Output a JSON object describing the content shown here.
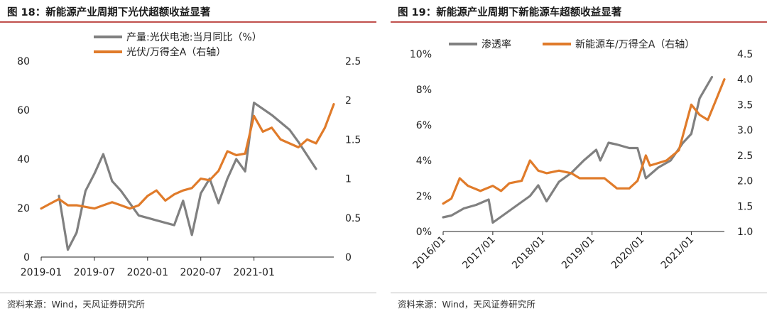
{
  "left": {
    "title": "图 18：新能源产业周期下光伏超额收益显著",
    "source": "资料来源：Wind，天风证券研究所",
    "chart_data": {
      "type": "line",
      "title": "图 18：新能源产业周期下光伏超额收益显著",
      "x_ticks": [
        "2019-01",
        "2019-07",
        "2020-01",
        "2020-07",
        "2021-01"
      ],
      "x_range": [
        "2019-01",
        "2021-10"
      ],
      "y_left": {
        "range": [
          0,
          80
        ],
        "ticks": [
          "0",
          "20",
          "40",
          "60",
          "80"
        ]
      },
      "y_right": {
        "range": [
          0,
          2.5
        ],
        "ticks": [
          "0",
          "0.5",
          "1",
          "1.5",
          "2",
          "2.5"
        ]
      },
      "grid": false,
      "legend_position": "top",
      "series": [
        {
          "name": "产量:光伏电池:当月同比（%）",
          "axis": "left",
          "color": "#808080",
          "points": [
            [
              "2019-03",
              25
            ],
            [
              "2019-04",
              3
            ],
            [
              "2019-05",
              10
            ],
            [
              "2019-06",
              27
            ],
            [
              "2019-07",
              34
            ],
            [
              "2019-08",
              42
            ],
            [
              "2019-09",
              31
            ],
            [
              "2019-10",
              27
            ],
            [
              "2019-11",
              22
            ],
            [
              "2019-12",
              17
            ],
            [
              "2020-01",
              16
            ],
            [
              "2020-02",
              15
            ],
            [
              "2020-03",
              14
            ],
            [
              "2020-04",
              13
            ],
            [
              "2020-05",
              23
            ],
            [
              "2020-06",
              9
            ],
            [
              "2020-07",
              26
            ],
            [
              "2020-08",
              32
            ],
            [
              "2020-09",
              22
            ],
            [
              "2020-10",
              32
            ],
            [
              "2020-11",
              40
            ],
            [
              "2020-12",
              35
            ],
            [
              "2021-01",
              63
            ],
            [
              "2021-03",
              58
            ],
            [
              "2021-05",
              52
            ],
            [
              "2021-06",
              47
            ],
            [
              "2021-08",
              36
            ]
          ]
        },
        {
          "name": "光伏/万得全A（右轴）",
          "axis": "right",
          "color": "#e07b2a",
          "points": [
            [
              "2019-01",
              0.62
            ],
            [
              "2019-02",
              0.68
            ],
            [
              "2019-03",
              0.74
            ],
            [
              "2019-04",
              0.66
            ],
            [
              "2019-05",
              0.66
            ],
            [
              "2019-06",
              0.64
            ],
            [
              "2019-07",
              0.62
            ],
            [
              "2019-08",
              0.66
            ],
            [
              "2019-09",
              0.7
            ],
            [
              "2019-10",
              0.66
            ],
            [
              "2019-11",
              0.62
            ],
            [
              "2019-12",
              0.66
            ],
            [
              "2020-01",
              0.78
            ],
            [
              "2020-02",
              0.85
            ],
            [
              "2020-03",
              0.72
            ],
            [
              "2020-04",
              0.8
            ],
            [
              "2020-05",
              0.85
            ],
            [
              "2020-06",
              0.88
            ],
            [
              "2020-07",
              1.0
            ],
            [
              "2020-08",
              0.98
            ],
            [
              "2020-09",
              1.1
            ],
            [
              "2020-10",
              1.35
            ],
            [
              "2020-11",
              1.3
            ],
            [
              "2020-12",
              1.32
            ],
            [
              "2021-01",
              1.8
            ],
            [
              "2021-02",
              1.6
            ],
            [
              "2021-03",
              1.65
            ],
            [
              "2021-04",
              1.5
            ],
            [
              "2021-05",
              1.45
            ],
            [
              "2021-06",
              1.4
            ],
            [
              "2021-07",
              1.5
            ],
            [
              "2021-08",
              1.45
            ],
            [
              "2021-09",
              1.65
            ],
            [
              "2021-10",
              1.95
            ]
          ]
        }
      ]
    }
  },
  "right": {
    "title": "图 19：新能源产业周期下新能源车超额收益显著",
    "source": "资料来源：Wind，天风证券研究所",
    "chart_data": {
      "type": "line",
      "title": "图 19：新能源产业周期下新能源车超额收益显著",
      "x_ticks": [
        "2016/01",
        "2017/01",
        "2018/01",
        "2019/01",
        "2020/01",
        "2021/01"
      ],
      "x_range": [
        "2016-01",
        "2021-09"
      ],
      "y_left": {
        "range": [
          0,
          10
        ],
        "ticks": [
          "0%",
          "2%",
          "4%",
          "6%",
          "8%",
          "10%"
        ]
      },
      "y_right": {
        "range": [
          1.0,
          4.5
        ],
        "ticks": [
          "1.0",
          "1.5",
          "2.0",
          "2.5",
          "3.0",
          "3.5",
          "4.0",
          "4.5"
        ]
      },
      "grid": false,
      "legend_position": "top",
      "series": [
        {
          "name": "渗透率",
          "axis": "left",
          "color": "#808080",
          "points": [
            [
              "2016-01",
              0.8
            ],
            [
              "2016-03",
              0.9
            ],
            [
              "2016-06",
              1.3
            ],
            [
              "2016-09",
              1.5
            ],
            [
              "2016-12",
              1.8
            ],
            [
              "2017-01",
              0.5
            ],
            [
              "2017-04",
              1.0
            ],
            [
              "2017-07",
              1.5
            ],
            [
              "2017-10",
              2.0
            ],
            [
              "2017-12",
              2.6
            ],
            [
              "2018-02",
              1.7
            ],
            [
              "2018-05",
              2.8
            ],
            [
              "2018-08",
              3.3
            ],
            [
              "2018-11",
              4.0
            ],
            [
              "2019-02",
              4.6
            ],
            [
              "2019-03",
              4.0
            ],
            [
              "2019-05",
              5.0
            ],
            [
              "2019-07",
              4.9
            ],
            [
              "2019-10",
              4.7
            ],
            [
              "2019-12",
              4.7
            ],
            [
              "2020-02",
              3.0
            ],
            [
              "2020-05",
              3.6
            ],
            [
              "2020-08",
              4.0
            ],
            [
              "2020-11",
              5.0
            ],
            [
              "2021-01",
              5.5
            ],
            [
              "2021-03",
              7.5
            ],
            [
              "2021-06",
              8.7
            ]
          ]
        },
        {
          "name": "新能源车/万得全A（右轴）",
          "axis": "right",
          "color": "#e07b2a",
          "points": [
            [
              "2016-01",
              1.55
            ],
            [
              "2016-03",
              1.65
            ],
            [
              "2016-05",
              2.05
            ],
            [
              "2016-07",
              1.9
            ],
            [
              "2016-10",
              1.8
            ],
            [
              "2017-01",
              1.9
            ],
            [
              "2017-03",
              1.8
            ],
            [
              "2017-05",
              1.95
            ],
            [
              "2017-08",
              2.0
            ],
            [
              "2017-10",
              2.4
            ],
            [
              "2017-12",
              2.2
            ],
            [
              "2018-02",
              2.15
            ],
            [
              "2018-05",
              2.2
            ],
            [
              "2018-08",
              2.15
            ],
            [
              "2018-10",
              2.05
            ],
            [
              "2019-01",
              2.05
            ],
            [
              "2019-04",
              2.05
            ],
            [
              "2019-07",
              1.85
            ],
            [
              "2019-10",
              1.85
            ],
            [
              "2019-12",
              2.0
            ],
            [
              "2020-02",
              2.5
            ],
            [
              "2020-03",
              2.3
            ],
            [
              "2020-05",
              2.35
            ],
            [
              "2020-07",
              2.4
            ],
            [
              "2020-10",
              2.6
            ],
            [
              "2021-01",
              3.5
            ],
            [
              "2021-03",
              3.3
            ],
            [
              "2021-05",
              3.2
            ],
            [
              "2021-07",
              3.6
            ],
            [
              "2021-09",
              4.0
            ]
          ]
        }
      ]
    }
  }
}
